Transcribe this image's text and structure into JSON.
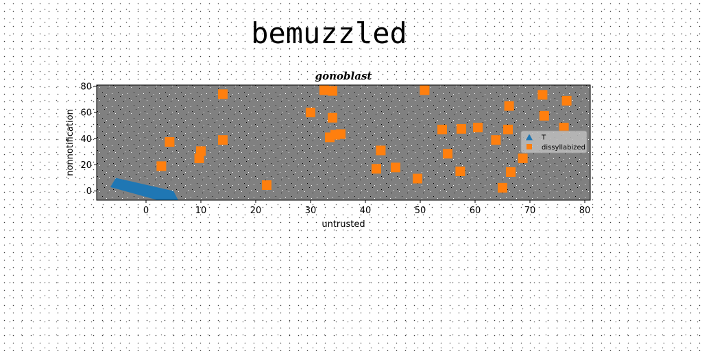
{
  "page": {
    "title": "bemuzzled"
  },
  "colors": {
    "plot_background": "#808080",
    "series_triangle": "#1f77b4",
    "series_square": "#ff7f0e",
    "legend_background": "#bdbdbd"
  },
  "chart_data": {
    "type": "scatter",
    "title": "gonoblast",
    "xlabel": "untrusted",
    "ylabel": "nonnotification",
    "xlim": [
      -9,
      81
    ],
    "ylim": [
      -7,
      81
    ],
    "xticks": [
      0,
      10,
      20,
      30,
      40,
      50,
      60,
      70,
      80
    ],
    "yticks": [
      0,
      20,
      40,
      60,
      80
    ],
    "grid": false,
    "legend_position": "center-right",
    "series": [
      {
        "name": "T",
        "marker": "triangle",
        "color": "#1f77b4",
        "shape": "filled-band",
        "points": [
          [
            -5.5,
            10
          ],
          [
            -6.5,
            3
          ],
          [
            3,
            -8
          ],
          [
            6,
            -8
          ],
          [
            5,
            0
          ]
        ]
      },
      {
        "name": "dissyllabized",
        "marker": "square",
        "color": "#ff7f0e",
        "points": [
          [
            2.8,
            19
          ],
          [
            4.3,
            37.5
          ],
          [
            9.7,
            25
          ],
          [
            10,
            30.5
          ],
          [
            14,
            74
          ],
          [
            14,
            39
          ],
          [
            22,
            4.5
          ],
          [
            30,
            60
          ],
          [
            32.5,
            77
          ],
          [
            33.5,
            41
          ],
          [
            34,
            76.5
          ],
          [
            34,
            56
          ],
          [
            34.5,
            43
          ],
          [
            35.5,
            43.5
          ],
          [
            42,
            17
          ],
          [
            42.8,
            31
          ],
          [
            45.5,
            18
          ],
          [
            49.5,
            9.5
          ],
          [
            50.8,
            77
          ],
          [
            54,
            47
          ],
          [
            55,
            28.5
          ],
          [
            57.3,
            15
          ],
          [
            57.5,
            47.5
          ],
          [
            60.5,
            48.5
          ],
          [
            63.8,
            39
          ],
          [
            65,
            2.5
          ],
          [
            66,
            47
          ],
          [
            66.2,
            65
          ],
          [
            66.5,
            14.5
          ],
          [
            68.7,
            25
          ],
          [
            72.3,
            73.5
          ],
          [
            72.6,
            57.5
          ],
          [
            76.2,
            48.5
          ],
          [
            76.7,
            69
          ]
        ]
      }
    ]
  }
}
